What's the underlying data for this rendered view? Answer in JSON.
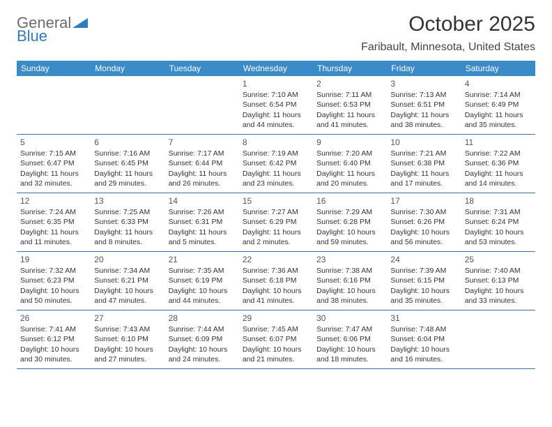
{
  "logo": {
    "text_gray": "General",
    "text_blue": "Blue",
    "shape_color": "#2f7cc4"
  },
  "title": "October 2025",
  "location": "Faribault, Minnesota, United States",
  "colors": {
    "header_bg": "#3b8bc8",
    "header_text": "#ffffff",
    "row_border": "#3b6fa0",
    "body_text": "#333333"
  },
  "day_headers": [
    "Sunday",
    "Monday",
    "Tuesday",
    "Wednesday",
    "Thursday",
    "Friday",
    "Saturday"
  ],
  "weeks": [
    [
      {
        "num": "",
        "sunrise": "",
        "sunset": "",
        "daylight": ""
      },
      {
        "num": "",
        "sunrise": "",
        "sunset": "",
        "daylight": ""
      },
      {
        "num": "",
        "sunrise": "",
        "sunset": "",
        "daylight": ""
      },
      {
        "num": "1",
        "sunrise": "Sunrise: 7:10 AM",
        "sunset": "Sunset: 6:54 PM",
        "daylight": "Daylight: 11 hours and 44 minutes."
      },
      {
        "num": "2",
        "sunrise": "Sunrise: 7:11 AM",
        "sunset": "Sunset: 6:53 PM",
        "daylight": "Daylight: 11 hours and 41 minutes."
      },
      {
        "num": "3",
        "sunrise": "Sunrise: 7:13 AM",
        "sunset": "Sunset: 6:51 PM",
        "daylight": "Daylight: 11 hours and 38 minutes."
      },
      {
        "num": "4",
        "sunrise": "Sunrise: 7:14 AM",
        "sunset": "Sunset: 6:49 PM",
        "daylight": "Daylight: 11 hours and 35 minutes."
      }
    ],
    [
      {
        "num": "5",
        "sunrise": "Sunrise: 7:15 AM",
        "sunset": "Sunset: 6:47 PM",
        "daylight": "Daylight: 11 hours and 32 minutes."
      },
      {
        "num": "6",
        "sunrise": "Sunrise: 7:16 AM",
        "sunset": "Sunset: 6:45 PM",
        "daylight": "Daylight: 11 hours and 29 minutes."
      },
      {
        "num": "7",
        "sunrise": "Sunrise: 7:17 AM",
        "sunset": "Sunset: 6:44 PM",
        "daylight": "Daylight: 11 hours and 26 minutes."
      },
      {
        "num": "8",
        "sunrise": "Sunrise: 7:19 AM",
        "sunset": "Sunset: 6:42 PM",
        "daylight": "Daylight: 11 hours and 23 minutes."
      },
      {
        "num": "9",
        "sunrise": "Sunrise: 7:20 AM",
        "sunset": "Sunset: 6:40 PM",
        "daylight": "Daylight: 11 hours and 20 minutes."
      },
      {
        "num": "10",
        "sunrise": "Sunrise: 7:21 AM",
        "sunset": "Sunset: 6:38 PM",
        "daylight": "Daylight: 11 hours and 17 minutes."
      },
      {
        "num": "11",
        "sunrise": "Sunrise: 7:22 AM",
        "sunset": "Sunset: 6:36 PM",
        "daylight": "Daylight: 11 hours and 14 minutes."
      }
    ],
    [
      {
        "num": "12",
        "sunrise": "Sunrise: 7:24 AM",
        "sunset": "Sunset: 6:35 PM",
        "daylight": "Daylight: 11 hours and 11 minutes."
      },
      {
        "num": "13",
        "sunrise": "Sunrise: 7:25 AM",
        "sunset": "Sunset: 6:33 PM",
        "daylight": "Daylight: 11 hours and 8 minutes."
      },
      {
        "num": "14",
        "sunrise": "Sunrise: 7:26 AM",
        "sunset": "Sunset: 6:31 PM",
        "daylight": "Daylight: 11 hours and 5 minutes."
      },
      {
        "num": "15",
        "sunrise": "Sunrise: 7:27 AM",
        "sunset": "Sunset: 6:29 PM",
        "daylight": "Daylight: 11 hours and 2 minutes."
      },
      {
        "num": "16",
        "sunrise": "Sunrise: 7:29 AM",
        "sunset": "Sunset: 6:28 PM",
        "daylight": "Daylight: 10 hours and 59 minutes."
      },
      {
        "num": "17",
        "sunrise": "Sunrise: 7:30 AM",
        "sunset": "Sunset: 6:26 PM",
        "daylight": "Daylight: 10 hours and 56 minutes."
      },
      {
        "num": "18",
        "sunrise": "Sunrise: 7:31 AM",
        "sunset": "Sunset: 6:24 PM",
        "daylight": "Daylight: 10 hours and 53 minutes."
      }
    ],
    [
      {
        "num": "19",
        "sunrise": "Sunrise: 7:32 AM",
        "sunset": "Sunset: 6:23 PM",
        "daylight": "Daylight: 10 hours and 50 minutes."
      },
      {
        "num": "20",
        "sunrise": "Sunrise: 7:34 AM",
        "sunset": "Sunset: 6:21 PM",
        "daylight": "Daylight: 10 hours and 47 minutes."
      },
      {
        "num": "21",
        "sunrise": "Sunrise: 7:35 AM",
        "sunset": "Sunset: 6:19 PM",
        "daylight": "Daylight: 10 hours and 44 minutes."
      },
      {
        "num": "22",
        "sunrise": "Sunrise: 7:36 AM",
        "sunset": "Sunset: 6:18 PM",
        "daylight": "Daylight: 10 hours and 41 minutes."
      },
      {
        "num": "23",
        "sunrise": "Sunrise: 7:38 AM",
        "sunset": "Sunset: 6:16 PM",
        "daylight": "Daylight: 10 hours and 38 minutes."
      },
      {
        "num": "24",
        "sunrise": "Sunrise: 7:39 AM",
        "sunset": "Sunset: 6:15 PM",
        "daylight": "Daylight: 10 hours and 35 minutes."
      },
      {
        "num": "25",
        "sunrise": "Sunrise: 7:40 AM",
        "sunset": "Sunset: 6:13 PM",
        "daylight": "Daylight: 10 hours and 33 minutes."
      }
    ],
    [
      {
        "num": "26",
        "sunrise": "Sunrise: 7:41 AM",
        "sunset": "Sunset: 6:12 PM",
        "daylight": "Daylight: 10 hours and 30 minutes."
      },
      {
        "num": "27",
        "sunrise": "Sunrise: 7:43 AM",
        "sunset": "Sunset: 6:10 PM",
        "daylight": "Daylight: 10 hours and 27 minutes."
      },
      {
        "num": "28",
        "sunrise": "Sunrise: 7:44 AM",
        "sunset": "Sunset: 6:09 PM",
        "daylight": "Daylight: 10 hours and 24 minutes."
      },
      {
        "num": "29",
        "sunrise": "Sunrise: 7:45 AM",
        "sunset": "Sunset: 6:07 PM",
        "daylight": "Daylight: 10 hours and 21 minutes."
      },
      {
        "num": "30",
        "sunrise": "Sunrise: 7:47 AM",
        "sunset": "Sunset: 6:06 PM",
        "daylight": "Daylight: 10 hours and 18 minutes."
      },
      {
        "num": "31",
        "sunrise": "Sunrise: 7:48 AM",
        "sunset": "Sunset: 6:04 PM",
        "daylight": "Daylight: 10 hours and 16 minutes."
      },
      {
        "num": "",
        "sunrise": "",
        "sunset": "",
        "daylight": ""
      }
    ]
  ]
}
